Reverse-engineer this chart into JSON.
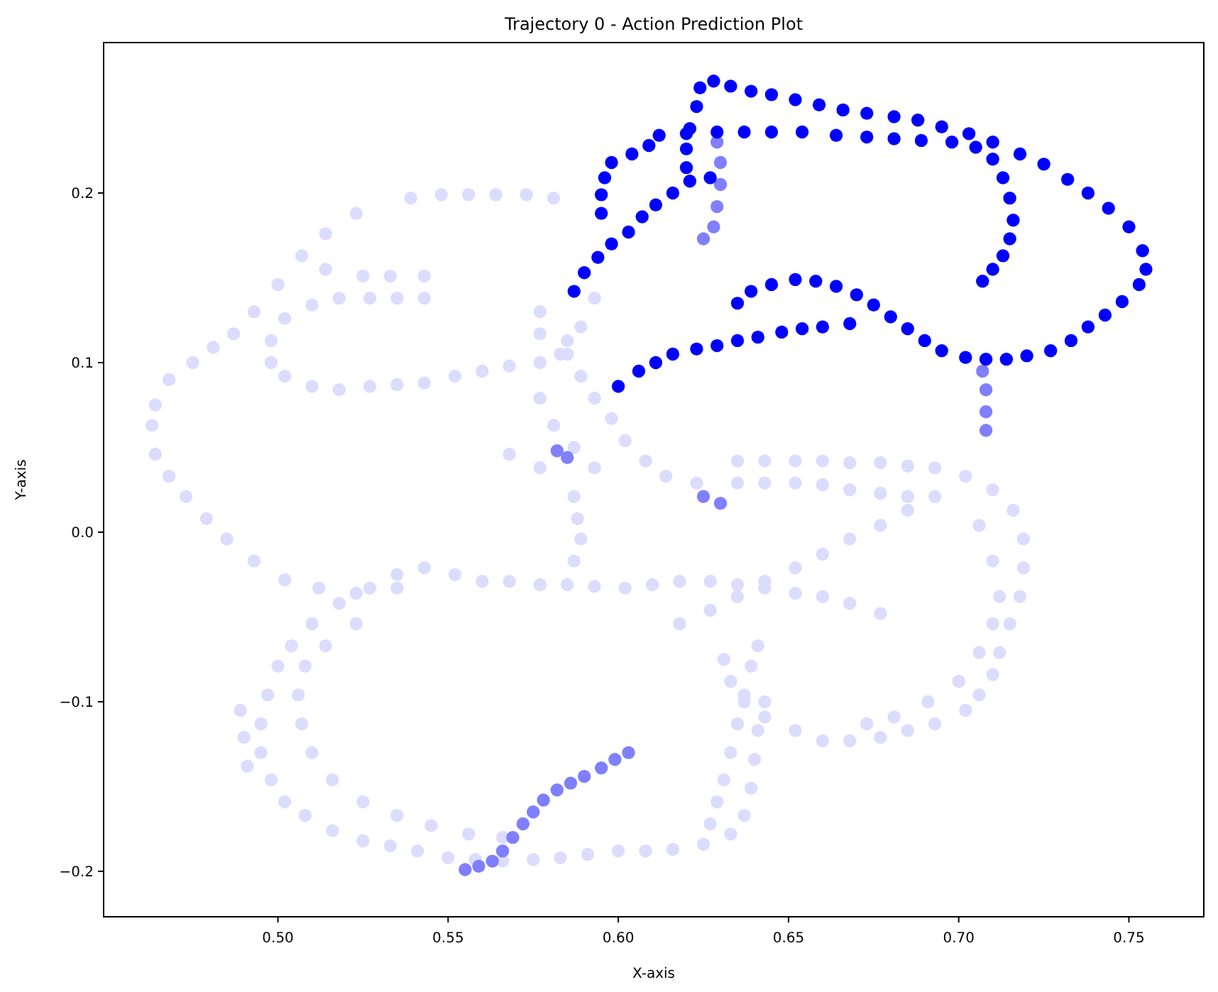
{
  "chart_data": {
    "type": "scatter",
    "title": "Trajectory 0 - Action Prediction Plot",
    "xlabel": "X-axis",
    "ylabel": "Y-axis",
    "marker": "circle",
    "grid": false,
    "xlim": [
      0.4488,
      0.772
    ],
    "ylim": [
      -0.2268,
      0.2887
    ],
    "xticks": [
      {
        "value": 0.5,
        "label": "0.50"
      },
      {
        "value": 0.55,
        "label": "0.55"
      },
      {
        "value": 0.6,
        "label": "0.60"
      },
      {
        "value": 0.65,
        "label": "0.65"
      },
      {
        "value": 0.7,
        "label": "0.70"
      },
      {
        "value": 0.75,
        "label": "0.75"
      }
    ],
    "yticks": [
      {
        "value": -0.2,
        "label": "−0.2"
      },
      {
        "value": -0.1,
        "label": "−0.1"
      },
      {
        "value": 0,
        "label": "0.0"
      },
      {
        "value": 0.1,
        "label": "0.1"
      },
      {
        "value": 0.2,
        "label": "0.2"
      }
    ],
    "series": [
      {
        "color": "#dcdcff",
        "x": [
          0.539,
          0.548,
          0.556,
          0.564,
          0.573,
          0.581,
          0.523,
          0.514,
          0.507,
          0.5,
          0.493,
          0.487,
          0.481,
          0.475,
          0.468,
          0.464,
          0.463,
          0.464,
          0.468,
          0.473,
          0.479,
          0.485,
          0.493,
          0.502,
          0.512,
          0.523,
          0.535,
          0.543,
          0.535,
          0.527,
          0.518,
          0.51,
          0.502,
          0.498,
          0.498,
          0.502,
          0.51,
          0.518,
          0.527,
          0.535,
          0.543,
          0.552,
          0.56,
          0.568,
          0.577,
          0.585,
          0.514,
          0.525,
          0.533,
          0.543,
          0.577,
          0.583,
          0.589,
          0.593,
          0.598,
          0.602,
          0.608,
          0.614,
          0.623,
          0.577,
          0.581,
          0.587,
          0.593,
          0.577,
          0.568,
          0.593,
          0.589,
          0.585,
          0.577,
          0.635,
          0.643,
          0.652,
          0.66,
          0.668,
          0.677,
          0.685,
          0.693,
          0.635,
          0.643,
          0.652,
          0.66,
          0.668,
          0.677,
          0.685,
          0.702,
          0.71,
          0.716,
          0.719,
          0.719,
          0.718,
          0.715,
          0.712,
          0.71,
          0.706,
          0.702,
          0.693,
          0.685,
          0.677,
          0.668,
          0.66,
          0.652,
          0.643,
          0.637,
          0.633,
          0.631,
          0.706,
          0.71,
          0.712,
          0.71,
          0.706,
          0.7,
          0.691,
          0.681,
          0.673,
          0.693,
          0.685,
          0.677,
          0.668,
          0.66,
          0.652,
          0.643,
          0.635,
          0.627,
          0.618,
          0.543,
          0.552,
          0.56,
          0.568,
          0.577,
          0.585,
          0.593,
          0.602,
          0.61,
          0.618,
          0.627,
          0.635,
          0.643,
          0.652,
          0.66,
          0.668,
          0.677,
          0.535,
          0.527,
          0.518,
          0.51,
          0.504,
          0.5,
          0.497,
          0.495,
          0.495,
          0.498,
          0.502,
          0.508,
          0.516,
          0.525,
          0.533,
          0.541,
          0.55,
          0.558,
          0.566,
          0.575,
          0.583,
          0.591,
          0.6,
          0.608,
          0.616,
          0.625,
          0.633,
          0.637,
          0.639,
          0.64,
          0.641,
          0.643,
          0.523,
          0.514,
          0.508,
          0.506,
          0.507,
          0.51,
          0.516,
          0.525,
          0.535,
          0.545,
          0.556,
          0.566,
          0.627,
          0.629,
          0.631,
          0.633,
          0.635,
          0.637,
          0.639,
          0.641,
          0.587,
          0.588,
          0.589,
          0.587,
          0.489,
          0.49,
          0.491
        ],
        "values": [
          0.197,
          0.199,
          0.199,
          0.199,
          0.199,
          0.197,
          0.188,
          0.176,
          0.163,
          0.146,
          0.13,
          0.117,
          0.109,
          0.1,
          0.09,
          0.075,
          0.063,
          0.046,
          0.033,
          0.021,
          0.008,
          -0.004,
          -0.017,
          -0.028,
          -0.033,
          -0.036,
          -0.033,
          0.138,
          0.138,
          0.138,
          0.138,
          0.134,
          0.126,
          0.113,
          0.1,
          0.092,
          0.086,
          0.084,
          0.086,
          0.087,
          0.088,
          0.092,
          0.095,
          0.098,
          0.1,
          0.105,
          0.155,
          0.151,
          0.151,
          0.151,
          0.117,
          0.105,
          0.092,
          0.079,
          0.067,
          0.054,
          0.042,
          0.033,
          0.029,
          0.079,
          0.063,
          0.05,
          0.038,
          0.038,
          0.046,
          0.138,
          0.121,
          0.113,
          0.13,
          0.042,
          0.042,
          0.042,
          0.042,
          0.041,
          0.041,
          0.039,
          0.038,
          0.029,
          0.029,
          0.029,
          0.028,
          0.025,
          0.023,
          0.021,
          0.033,
          0.025,
          0.013,
          -0.004,
          -0.021,
          -0.038,
          -0.054,
          -0.071,
          -0.084,
          -0.096,
          -0.105,
          -0.113,
          -0.117,
          -0.121,
          -0.123,
          -0.123,
          -0.117,
          -0.109,
          -0.1,
          -0.088,
          -0.075,
          0.004,
          -0.017,
          -0.038,
          -0.054,
          -0.071,
          -0.088,
          -0.1,
          -0.109,
          -0.113,
          0.021,
          0.013,
          0.004,
          -0.004,
          -0.013,
          -0.021,
          -0.029,
          -0.038,
          -0.046,
          -0.054,
          -0.021,
          -0.025,
          -0.029,
          -0.029,
          -0.031,
          -0.031,
          -0.032,
          -0.033,
          -0.031,
          -0.029,
          -0.029,
          -0.031,
          -0.033,
          -0.036,
          -0.038,
          -0.042,
          -0.048,
          -0.025,
          -0.033,
          -0.042,
          -0.054,
          -0.067,
          -0.079,
          -0.096,
          -0.113,
          -0.13,
          -0.146,
          -0.159,
          -0.167,
          -0.176,
          -0.182,
          -0.185,
          -0.188,
          -0.192,
          -0.193,
          -0.194,
          -0.193,
          -0.192,
          -0.19,
          -0.188,
          -0.188,
          -0.187,
          -0.184,
          -0.178,
          -0.167,
          -0.151,
          -0.134,
          -0.117,
          -0.1,
          -0.054,
          -0.067,
          -0.079,
          -0.096,
          -0.113,
          -0.13,
          -0.146,
          -0.159,
          -0.167,
          -0.173,
          -0.178,
          -0.18,
          -0.172,
          -0.159,
          -0.146,
          -0.13,
          -0.113,
          -0.096,
          -0.079,
          -0.067,
          0.021,
          0.008,
          -0.004,
          -0.017,
          -0.105,
          -0.121,
          -0.138
        ]
      },
      {
        "color": "#7f7fff",
        "x": [
          0.555,
          0.559,
          0.563,
          0.566,
          0.569,
          0.572,
          0.575,
          0.578,
          0.582,
          0.586,
          0.59,
          0.595,
          0.599,
          0.603,
          0.629,
          0.63,
          0.63,
          0.629,
          0.628,
          0.625,
          0.707,
          0.708,
          0.708,
          0.708,
          0.625,
          0.63,
          0.585,
          0.582
        ],
        "values": [
          -0.199,
          -0.197,
          -0.194,
          -0.188,
          -0.18,
          -0.172,
          -0.165,
          -0.158,
          -0.152,
          -0.148,
          -0.144,
          -0.139,
          -0.134,
          -0.13,
          0.23,
          0.218,
          0.205,
          0.192,
          0.18,
          0.173,
          0.095,
          0.084,
          0.071,
          0.06,
          0.021,
          0.017,
          0.044,
          0.048
        ]
      },
      {
        "color": "#0000ff",
        "x": [
          0.6,
          0.606,
          0.611,
          0.616,
          0.623,
          0.629,
          0.635,
          0.641,
          0.648,
          0.654,
          0.66,
          0.668,
          0.635,
          0.639,
          0.645,
          0.652,
          0.658,
          0.664,
          0.67,
          0.675,
          0.68,
          0.685,
          0.69,
          0.695,
          0.702,
          0.708,
          0.714,
          0.72,
          0.727,
          0.733,
          0.738,
          0.743,
          0.748,
          0.753,
          0.755,
          0.754,
          0.75,
          0.744,
          0.738,
          0.732,
          0.725,
          0.718,
          0.71,
          0.703,
          0.695,
          0.688,
          0.681,
          0.673,
          0.666,
          0.659,
          0.652,
          0.645,
          0.639,
          0.633,
          0.628,
          0.624,
          0.623,
          0.621,
          0.62,
          0.62,
          0.612,
          0.62,
          0.629,
          0.637,
          0.645,
          0.654,
          0.664,
          0.673,
          0.681,
          0.689,
          0.698,
          0.705,
          0.71,
          0.713,
          0.715,
          0.716,
          0.715,
          0.713,
          0.71,
          0.707,
          0.587,
          0.59,
          0.594,
          0.598,
          0.603,
          0.607,
          0.611,
          0.616,
          0.621,
          0.627,
          0.595,
          0.595,
          0.596,
          0.598,
          0.604,
          0.609
        ],
        "values": [
          0.086,
          0.095,
          0.1,
          0.105,
          0.108,
          0.11,
          0.113,
          0.115,
          0.118,
          0.12,
          0.121,
          0.123,
          0.135,
          0.142,
          0.146,
          0.149,
          0.148,
          0.145,
          0.14,
          0.134,
          0.127,
          0.12,
          0.113,
          0.107,
          0.103,
          0.102,
          0.102,
          0.104,
          0.107,
          0.113,
          0.121,
          0.128,
          0.136,
          0.146,
          0.155,
          0.166,
          0.18,
          0.191,
          0.2,
          0.208,
          0.217,
          0.223,
          0.23,
          0.235,
          0.239,
          0.243,
          0.245,
          0.247,
          0.249,
          0.252,
          0.255,
          0.258,
          0.26,
          0.263,
          0.266,
          0.262,
          0.251,
          0.238,
          0.226,
          0.215,
          0.234,
          0.235,
          0.236,
          0.236,
          0.236,
          0.236,
          0.234,
          0.233,
          0.232,
          0.231,
          0.23,
          0.227,
          0.22,
          0.209,
          0.197,
          0.184,
          0.173,
          0.163,
          0.155,
          0.148,
          0.142,
          0.153,
          0.162,
          0.17,
          0.177,
          0.186,
          0.193,
          0.2,
          0.207,
          0.209,
          0.188,
          0.199,
          0.209,
          0.218,
          0.223,
          0.228
        ]
      }
    ]
  }
}
